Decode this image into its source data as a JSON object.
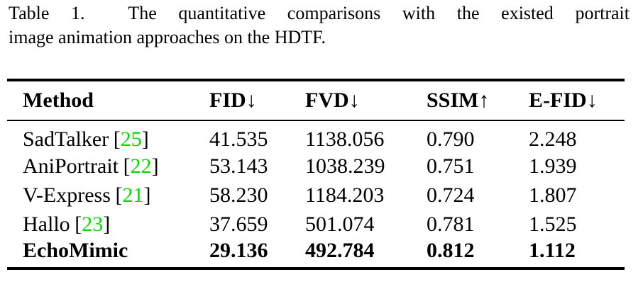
{
  "caption": {
    "line1": "Table 1.  The quantitative comparisons with the existed portrait",
    "line2": "image animation approaches on the HDTF."
  },
  "table": {
    "headers": [
      {
        "label": "Method"
      },
      {
        "label": "FID↓"
      },
      {
        "label": "FVD↓"
      },
      {
        "label": "SSIM↑"
      },
      {
        "label": "E-FID↓"
      }
    ],
    "bracket_open": "[",
    "bracket_close": "]",
    "rows": [
      {
        "method": "SadTalker",
        "citation": "25",
        "fid": "41.535",
        "fvd": "1138.056",
        "ssim": "0.790",
        "efid": "2.248"
      },
      {
        "method": "AniPortrait",
        "citation": "22",
        "fid": "53.143",
        "fvd": "1038.239",
        "ssim": "0.751",
        "efid": "1.939"
      },
      {
        "method": "V-Express",
        "citation": "21",
        "fid": "58.230",
        "fvd": "1184.203",
        "ssim": "0.724",
        "efid": "1.807"
      },
      {
        "method": "Hallo",
        "citation": "23",
        "fid": "37.659",
        "fvd": "501.074",
        "ssim": "0.781",
        "efid": "1.525"
      },
      {
        "method": "EchoMimic",
        "fid": "29.136",
        "fvd": "492.784",
        "ssim": "0.812",
        "efid": "1.112"
      }
    ]
  },
  "colors": {
    "citation_green": "#00DE00",
    "text": "#000000",
    "background": "#FFFFFF"
  }
}
